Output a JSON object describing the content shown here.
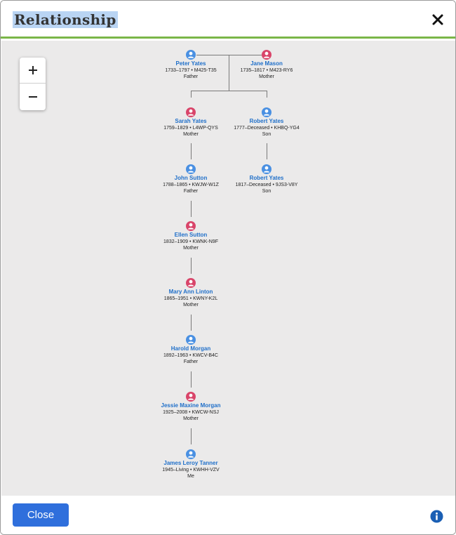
{
  "dialog": {
    "title": "Relationship",
    "close_button_label": "Close"
  },
  "zoom": {
    "in_label": "+",
    "out_label": "−"
  },
  "colors": {
    "male": "#4a90e2",
    "female": "#d9456a",
    "accent_green": "#7ab648",
    "primary_button": "#2f6fdc"
  },
  "tree": {
    "father_pair": {
      "father": {
        "name": "Peter Yates",
        "info": "1733–1797 • M425-T35",
        "relation": "Father",
        "gender": "male"
      },
      "mother": {
        "name": "Jane Mason",
        "info": "1735–1817 • M423-RY6",
        "relation": "Mother",
        "gender": "female"
      }
    },
    "left_line": [
      {
        "name": "Sarah Yates",
        "info": "1759–1829 • L4WP-QYS",
        "relation": "Mother",
        "gender": "female"
      },
      {
        "name": "John Sutton",
        "info": "1788–1865 • KWJW-W1Z",
        "relation": "Father",
        "gender": "male"
      },
      {
        "name": "Ellen Sutton",
        "info": "1832–1909 • KWNK-N9F",
        "relation": "Mother",
        "gender": "female"
      },
      {
        "name": "Mary Ann Linton",
        "info": "1865–1951 • KWNY-K2L",
        "relation": "Mother",
        "gender": "female"
      },
      {
        "name": "Harold Morgan",
        "info": "1892–1963 • KWCV-B4C",
        "relation": "Father",
        "gender": "male"
      },
      {
        "name": "Jessie Maxine Morgan",
        "info": "1925–2008 • KWCW-NSJ",
        "relation": "Mother",
        "gender": "female"
      },
      {
        "name": "James Leroy Tanner",
        "info": "1945–Living • KWHH-VZV",
        "relation": "Me",
        "gender": "male"
      }
    ],
    "right_line": [
      {
        "name": "Robert Yates",
        "info": "1777–Deceased • KHBQ-YG4",
        "relation": "Son",
        "gender": "male"
      },
      {
        "name": "Robert Yates",
        "info": "1817–Deceased • 9JS3-V8Y",
        "relation": "Son",
        "gender": "male"
      }
    ]
  }
}
